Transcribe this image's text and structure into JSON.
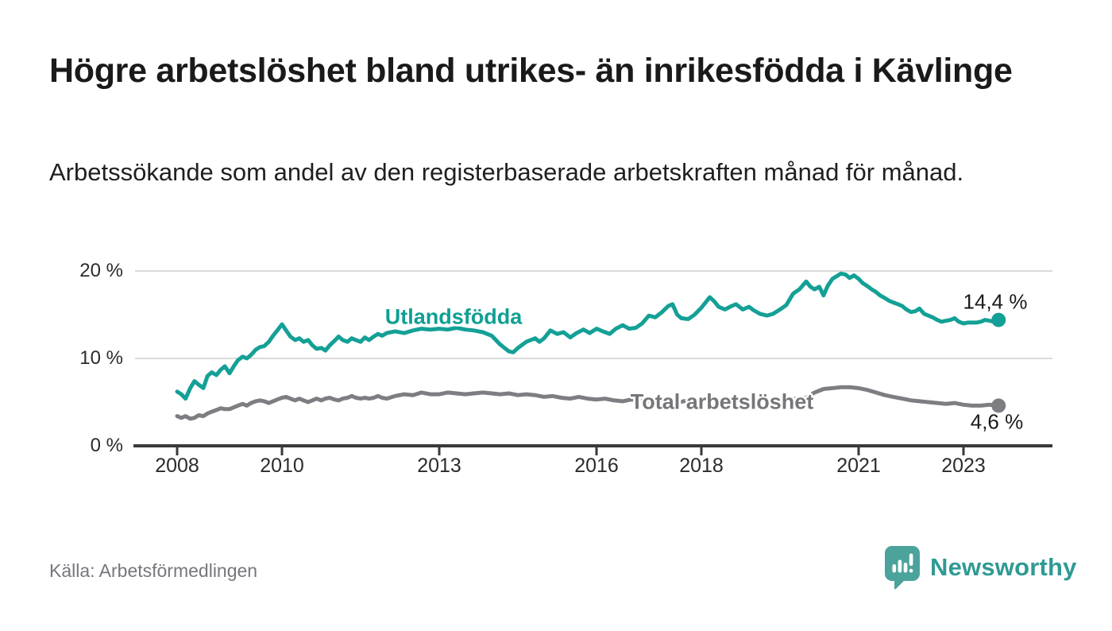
{
  "title": "Högre arbetslöshet bland utrikes- än inrikesfödda i Kävlinge",
  "subtitle": "Arbetssökande som andel av den registerbaserade arbetskraften månad för månad.",
  "source": "Källa: Arbetsförmedlingen",
  "brand": {
    "name": "Newsworthy",
    "logo_icon": "map-pin-bar-chart-icon",
    "mark_color": "#4ba39c",
    "text_color": "#2f9a93"
  },
  "colors": {
    "accent_teal": "#14a096",
    "line_gray": "#7d7d82",
    "axis": "#3a3a3a",
    "gridline": "#dadada"
  },
  "chart_data": {
    "type": "line",
    "title": "Högre arbetslöshet bland utrikes- än inrikesfödda i Kävlinge",
    "subtitle": "Arbetssökande som andel av den registerbaserade arbetskraften månad för månad.",
    "xlabel": "",
    "ylabel": "",
    "unit": "%",
    "grid": "horizontal",
    "legend_position": "inline-labels",
    "ylim": [
      0,
      21.5
    ],
    "xlim": [
      2007.2,
      2024.7
    ],
    "y_axis": {
      "ticks": [
        {
          "value": 0,
          "label": "0 %"
        },
        {
          "value": 10,
          "label": "10 %"
        },
        {
          "value": 20,
          "label": "20 %"
        }
      ]
    },
    "x_axis": {
      "ticks": [
        {
          "value": 2008,
          "label": "2008"
        },
        {
          "value": 2010,
          "label": "2010"
        },
        {
          "value": 2013,
          "label": "2013"
        },
        {
          "value": 2016,
          "label": "2016"
        },
        {
          "value": 2018,
          "label": "2018"
        },
        {
          "value": 2021,
          "label": "2021"
        },
        {
          "value": 2023,
          "label": "2023"
        }
      ]
    },
    "series": [
      {
        "name": "Utlandsfödda",
        "color": "#14a096",
        "end_value": 14.4,
        "end_label": "14,4 %",
        "points": [
          [
            2008.0,
            6.2
          ],
          [
            2008.08,
            5.9
          ],
          [
            2008.16,
            5.4
          ],
          [
            2008.25,
            6.6
          ],
          [
            2008.33,
            7.4
          ],
          [
            2008.41,
            7.0
          ],
          [
            2008.5,
            6.6
          ],
          [
            2008.58,
            8.0
          ],
          [
            2008.66,
            8.4
          ],
          [
            2008.75,
            8.1
          ],
          [
            2008.83,
            8.7
          ],
          [
            2008.91,
            9.1
          ],
          [
            2009.0,
            8.3
          ],
          [
            2009.08,
            9.1
          ],
          [
            2009.16,
            9.8
          ],
          [
            2009.25,
            10.2
          ],
          [
            2009.33,
            10.0
          ],
          [
            2009.41,
            10.4
          ],
          [
            2009.5,
            11.0
          ],
          [
            2009.58,
            11.3
          ],
          [
            2009.66,
            11.4
          ],
          [
            2009.75,
            11.9
          ],
          [
            2009.83,
            12.6
          ],
          [
            2009.91,
            13.2
          ],
          [
            2010.0,
            13.9
          ],
          [
            2010.08,
            13.2
          ],
          [
            2010.16,
            12.5
          ],
          [
            2010.25,
            12.1
          ],
          [
            2010.33,
            12.3
          ],
          [
            2010.41,
            11.9
          ],
          [
            2010.5,
            12.1
          ],
          [
            2010.58,
            11.5
          ],
          [
            2010.66,
            11.1
          ],
          [
            2010.75,
            11.2
          ],
          [
            2010.83,
            10.9
          ],
          [
            2010.91,
            11.5
          ],
          [
            2011.0,
            12.0
          ],
          [
            2011.08,
            12.5
          ],
          [
            2011.16,
            12.1
          ],
          [
            2011.25,
            11.9
          ],
          [
            2011.33,
            12.3
          ],
          [
            2011.41,
            12.1
          ],
          [
            2011.5,
            11.9
          ],
          [
            2011.58,
            12.4
          ],
          [
            2011.66,
            12.1
          ],
          [
            2011.75,
            12.5
          ],
          [
            2011.83,
            12.8
          ],
          [
            2011.91,
            12.6
          ],
          [
            2012.0,
            12.9
          ],
          [
            2012.16,
            13.1
          ],
          [
            2012.33,
            12.9
          ],
          [
            2012.5,
            13.2
          ],
          [
            2012.66,
            13.4
          ],
          [
            2012.83,
            13.3
          ],
          [
            2013.0,
            13.4
          ],
          [
            2013.16,
            13.3
          ],
          [
            2013.33,
            13.5
          ],
          [
            2013.5,
            13.3
          ],
          [
            2013.66,
            13.2
          ],
          [
            2013.83,
            13.0
          ],
          [
            2014.0,
            12.6
          ],
          [
            2014.16,
            11.6
          ],
          [
            2014.33,
            10.8
          ],
          [
            2014.41,
            10.7
          ],
          [
            2014.5,
            11.2
          ],
          [
            2014.66,
            11.9
          ],
          [
            2014.83,
            12.3
          ],
          [
            2014.91,
            11.9
          ],
          [
            2015.0,
            12.3
          ],
          [
            2015.12,
            13.2
          ],
          [
            2015.25,
            12.8
          ],
          [
            2015.37,
            13.0
          ],
          [
            2015.5,
            12.4
          ],
          [
            2015.62,
            12.9
          ],
          [
            2015.75,
            13.3
          ],
          [
            2015.87,
            12.9
          ],
          [
            2016.0,
            13.4
          ],
          [
            2016.12,
            13.1
          ],
          [
            2016.25,
            12.8
          ],
          [
            2016.37,
            13.4
          ],
          [
            2016.5,
            13.8
          ],
          [
            2016.62,
            13.4
          ],
          [
            2016.75,
            13.5
          ],
          [
            2016.87,
            14.0
          ],
          [
            2017.0,
            14.9
          ],
          [
            2017.12,
            14.7
          ],
          [
            2017.25,
            15.3
          ],
          [
            2017.37,
            16.0
          ],
          [
            2017.45,
            16.2
          ],
          [
            2017.54,
            15.0
          ],
          [
            2017.62,
            14.6
          ],
          [
            2017.75,
            14.5
          ],
          [
            2017.87,
            15.0
          ],
          [
            2018.0,
            15.8
          ],
          [
            2018.08,
            16.4
          ],
          [
            2018.16,
            17.0
          ],
          [
            2018.25,
            16.5
          ],
          [
            2018.33,
            15.9
          ],
          [
            2018.45,
            15.6
          ],
          [
            2018.58,
            16.0
          ],
          [
            2018.66,
            16.2
          ],
          [
            2018.79,
            15.6
          ],
          [
            2018.91,
            15.9
          ],
          [
            2019.0,
            15.5
          ],
          [
            2019.12,
            15.1
          ],
          [
            2019.25,
            14.9
          ],
          [
            2019.37,
            15.1
          ],
          [
            2019.5,
            15.6
          ],
          [
            2019.62,
            16.1
          ],
          [
            2019.75,
            17.4
          ],
          [
            2019.87,
            17.9
          ],
          [
            2020.0,
            18.8
          ],
          [
            2020.08,
            18.2
          ],
          [
            2020.16,
            17.9
          ],
          [
            2020.25,
            18.2
          ],
          [
            2020.33,
            17.2
          ],
          [
            2020.41,
            18.3
          ],
          [
            2020.5,
            19.1
          ],
          [
            2020.58,
            19.4
          ],
          [
            2020.66,
            19.7
          ],
          [
            2020.75,
            19.6
          ],
          [
            2020.83,
            19.2
          ],
          [
            2020.91,
            19.5
          ],
          [
            2021.0,
            19.1
          ],
          [
            2021.08,
            18.6
          ],
          [
            2021.16,
            18.3
          ],
          [
            2021.25,
            17.9
          ],
          [
            2021.33,
            17.6
          ],
          [
            2021.41,
            17.2
          ],
          [
            2021.5,
            16.9
          ],
          [
            2021.58,
            16.6
          ],
          [
            2021.66,
            16.4
          ],
          [
            2021.75,
            16.2
          ],
          [
            2021.83,
            16.0
          ],
          [
            2021.91,
            15.6
          ],
          [
            2022.0,
            15.3
          ],
          [
            2022.08,
            15.4
          ],
          [
            2022.16,
            15.7
          ],
          [
            2022.25,
            15.1
          ],
          [
            2022.33,
            14.9
          ],
          [
            2022.41,
            14.7
          ],
          [
            2022.5,
            14.4
          ],
          [
            2022.58,
            14.2
          ],
          [
            2022.66,
            14.3
          ],
          [
            2022.75,
            14.4
          ],
          [
            2022.83,
            14.6
          ],
          [
            2022.91,
            14.2
          ],
          [
            2023.0,
            14.0
          ],
          [
            2023.08,
            14.1
          ],
          [
            2023.16,
            14.1
          ],
          [
            2023.25,
            14.1
          ],
          [
            2023.33,
            14.2
          ],
          [
            2023.41,
            14.4
          ],
          [
            2023.5,
            14.3
          ],
          [
            2023.58,
            14.2
          ],
          [
            2023.67,
            14.4
          ]
        ]
      },
      {
        "name": "Total arbetslöshet",
        "color": "#7d7d82",
        "end_value": 4.6,
        "end_label": "4,6 %",
        "points": [
          [
            2008.0,
            3.4
          ],
          [
            2008.08,
            3.2
          ],
          [
            2008.16,
            3.4
          ],
          [
            2008.25,
            3.1
          ],
          [
            2008.33,
            3.2
          ],
          [
            2008.41,
            3.5
          ],
          [
            2008.5,
            3.4
          ],
          [
            2008.58,
            3.7
          ],
          [
            2008.66,
            3.9
          ],
          [
            2008.75,
            4.1
          ],
          [
            2008.83,
            4.3
          ],
          [
            2008.91,
            4.2
          ],
          [
            2009.0,
            4.2
          ],
          [
            2009.08,
            4.4
          ],
          [
            2009.16,
            4.6
          ],
          [
            2009.25,
            4.8
          ],
          [
            2009.33,
            4.6
          ],
          [
            2009.41,
            4.9
          ],
          [
            2009.5,
            5.1
          ],
          [
            2009.58,
            5.2
          ],
          [
            2009.66,
            5.1
          ],
          [
            2009.75,
            4.9
          ],
          [
            2009.83,
            5.1
          ],
          [
            2009.91,
            5.3
          ],
          [
            2010.0,
            5.5
          ],
          [
            2010.08,
            5.6
          ],
          [
            2010.16,
            5.4
          ],
          [
            2010.25,
            5.2
          ],
          [
            2010.33,
            5.4
          ],
          [
            2010.41,
            5.2
          ],
          [
            2010.5,
            5.0
          ],
          [
            2010.58,
            5.2
          ],
          [
            2010.66,
            5.4
          ],
          [
            2010.75,
            5.2
          ],
          [
            2010.83,
            5.4
          ],
          [
            2010.91,
            5.5
          ],
          [
            2011.0,
            5.3
          ],
          [
            2011.08,
            5.2
          ],
          [
            2011.16,
            5.4
          ],
          [
            2011.25,
            5.5
          ],
          [
            2011.33,
            5.7
          ],
          [
            2011.41,
            5.5
          ],
          [
            2011.5,
            5.4
          ],
          [
            2011.58,
            5.5
          ],
          [
            2011.66,
            5.4
          ],
          [
            2011.75,
            5.5
          ],
          [
            2011.83,
            5.7
          ],
          [
            2011.91,
            5.5
          ],
          [
            2012.0,
            5.4
          ],
          [
            2012.16,
            5.7
          ],
          [
            2012.33,
            5.9
          ],
          [
            2012.5,
            5.8
          ],
          [
            2012.66,
            6.1
          ],
          [
            2012.83,
            5.9
          ],
          [
            2013.0,
            5.9
          ],
          [
            2013.16,
            6.1
          ],
          [
            2013.33,
            6.0
          ],
          [
            2013.5,
            5.9
          ],
          [
            2013.66,
            6.0
          ],
          [
            2013.83,
            6.1
          ],
          [
            2014.0,
            6.0
          ],
          [
            2014.16,
            5.9
          ],
          [
            2014.33,
            6.0
          ],
          [
            2014.5,
            5.8
          ],
          [
            2014.66,
            5.9
          ],
          [
            2014.83,
            5.8
          ],
          [
            2015.0,
            5.6
          ],
          [
            2015.16,
            5.7
          ],
          [
            2015.33,
            5.5
          ],
          [
            2015.5,
            5.4
          ],
          [
            2015.66,
            5.6
          ],
          [
            2015.83,
            5.4
          ],
          [
            2016.0,
            5.3
          ],
          [
            2016.16,
            5.4
          ],
          [
            2016.33,
            5.2
          ],
          [
            2016.5,
            5.1
          ],
          [
            2016.66,
            5.3
          ],
          [
            2016.83,
            5.2
          ],
          [
            2017.0,
            5.1
          ],
          [
            2017.16,
            5.2
          ],
          [
            2017.33,
            5.0
          ],
          [
            2017.5,
            4.9
          ],
          [
            2017.66,
            5.1
          ],
          [
            2017.83,
            5.2
          ],
          [
            2018.0,
            5.1
          ],
          [
            2018.16,
            5.3
          ],
          [
            2018.33,
            5.2
          ],
          [
            2018.5,
            5.1
          ],
          [
            2018.66,
            5.2
          ],
          [
            2018.83,
            5.1
          ],
          [
            2019.0,
            5.2
          ],
          [
            2019.16,
            5.3
          ],
          [
            2019.33,
            5.2
          ],
          [
            2019.5,
            5.4
          ],
          [
            2019.66,
            5.3
          ],
          [
            2019.83,
            5.4
          ],
          [
            2020.0,
            5.5
          ],
          [
            2020.16,
            6.1
          ],
          [
            2020.33,
            6.5
          ],
          [
            2020.5,
            6.6
          ],
          [
            2020.66,
            6.7
          ],
          [
            2020.83,
            6.7
          ],
          [
            2021.0,
            6.6
          ],
          [
            2021.16,
            6.4
          ],
          [
            2021.33,
            6.1
          ],
          [
            2021.5,
            5.8
          ],
          [
            2021.66,
            5.6
          ],
          [
            2021.83,
            5.4
          ],
          [
            2022.0,
            5.2
          ],
          [
            2022.16,
            5.1
          ],
          [
            2022.33,
            5.0
          ],
          [
            2022.5,
            4.9
          ],
          [
            2022.66,
            4.8
          ],
          [
            2022.83,
            4.9
          ],
          [
            2023.0,
            4.7
          ],
          [
            2023.16,
            4.6
          ],
          [
            2023.33,
            4.6
          ],
          [
            2023.5,
            4.7
          ],
          [
            2023.67,
            4.6
          ]
        ]
      }
    ]
  }
}
